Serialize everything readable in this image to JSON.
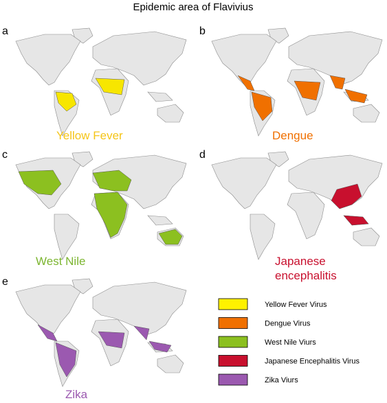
{
  "title": "Epidemic area of Flavivius",
  "panels": [
    {
      "letter": "a",
      "label": [
        "Yellow Fever"
      ],
      "color": "#f7e600",
      "label_color": "#f5c518"
    },
    {
      "letter": "b",
      "label": [
        "Dengue"
      ],
      "color": "#f07000",
      "label_color": "#f07000"
    },
    {
      "letter": "c",
      "label": [
        "West Nile"
      ],
      "color": "#8cc020",
      "label_color": "#7cb530"
    },
    {
      "letter": "d",
      "label": [
        "Japanese",
        "encephalitis"
      ],
      "color": "#c8102e",
      "label_color": "#c8102e"
    },
    {
      "letter": "e",
      "label": [
        "Zika"
      ],
      "color": "#9b59b0",
      "label_color": "#9b59b0"
    }
  ],
  "legend": [
    {
      "label": "Yellow Fever Virus",
      "color": "#fff200"
    },
    {
      "label": "Dengue Virus",
      "color": "#f07000"
    },
    {
      "label": "West Nile Viurs",
      "color": "#8cc020"
    },
    {
      "label": "Japanese Encephalitis Virus",
      "color": "#c8102e"
    },
    {
      "label": "Zika Viurs",
      "color": "#9b59b0"
    }
  ]
}
